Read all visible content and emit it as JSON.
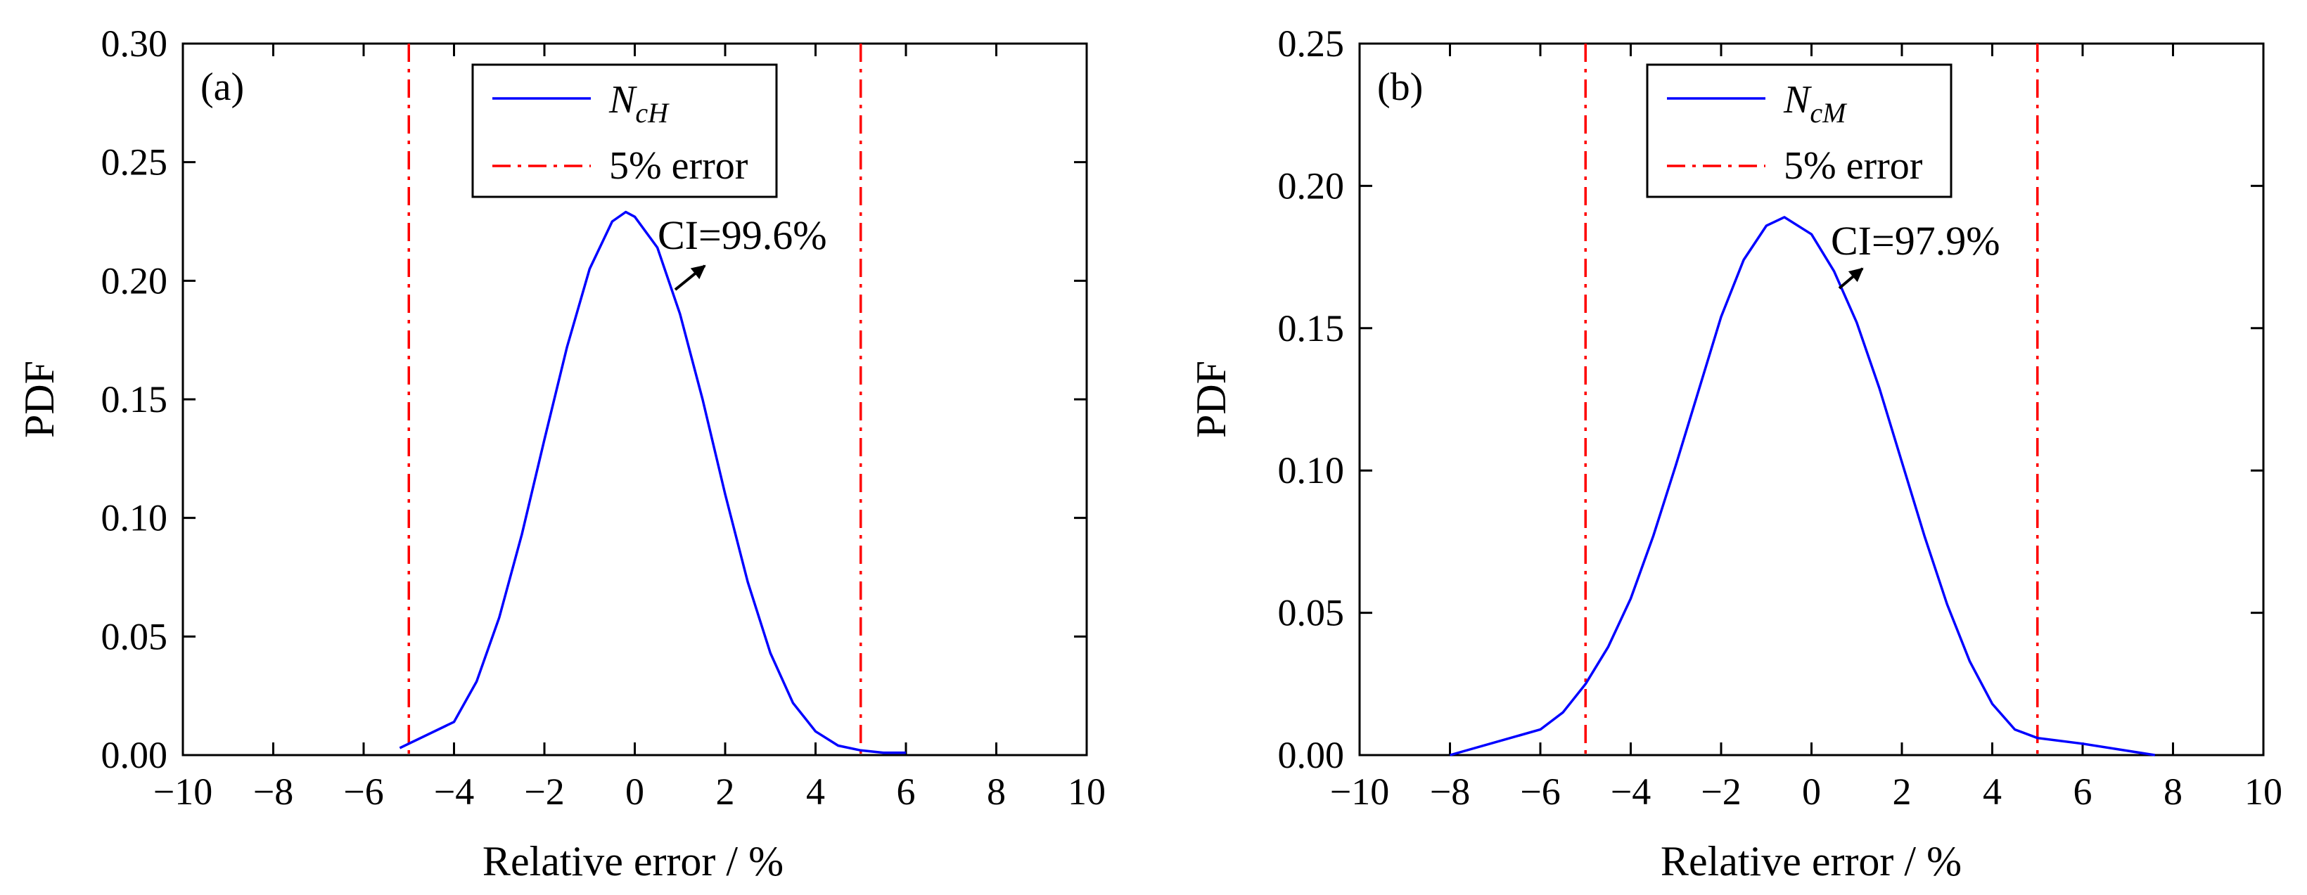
{
  "chart_data": [
    {
      "type": "line",
      "panel_label": "(a)",
      "xlabel": "Relative error / %",
      "ylabel": "PDF",
      "xlim": [
        -10,
        10
      ],
      "ylim": [
        0,
        0.3
      ],
      "xticks": [
        -10,
        -8,
        -6,
        -4,
        -2,
        0,
        2,
        4,
        6,
        8,
        10
      ],
      "xtick_labels": [
        "−10",
        "−8",
        "−6",
        "−4",
        "−2",
        "0",
        "2",
        "4",
        "6",
        "8",
        "10"
      ],
      "yticks": [
        0,
        0.05,
        0.1,
        0.15,
        0.2,
        0.25,
        0.3
      ],
      "ytick_labels": [
        "0.00",
        "0.05",
        "0.10",
        "0.15",
        "0.20",
        "0.25",
        "0.30"
      ],
      "series": [
        {
          "name": "NcH",
          "legend_main": "N",
          "legend_sub": "cH",
          "color": "#0000ff",
          "x": [
            -5.2,
            -4.0,
            -3.5,
            -3.0,
            -2.5,
            -2.0,
            -1.5,
            -1.0,
            -0.5,
            -0.2,
            0.0,
            0.5,
            1.0,
            1.5,
            2.0,
            2.5,
            3.0,
            3.5,
            4.0,
            4.5,
            5.0,
            5.5,
            6.0
          ],
          "y": [
            0.003,
            0.014,
            0.031,
            0.058,
            0.093,
            0.133,
            0.172,
            0.205,
            0.225,
            0.229,
            0.227,
            0.214,
            0.186,
            0.15,
            0.11,
            0.073,
            0.043,
            0.022,
            0.01,
            0.004,
            0.002,
            0.001,
            0.001
          ]
        }
      ],
      "reference_lines": {
        "legend_label": "5% error",
        "color": "#ff0000",
        "x_values": [
          -5,
          5
        ]
      },
      "annotation": {
        "text": "CI=99.6%",
        "x": 0.8,
        "y": 0.2
      }
    },
    {
      "type": "line",
      "panel_label": "(b)",
      "xlabel": "Relative error / %",
      "ylabel": "PDF",
      "xlim": [
        -10,
        10
      ],
      "ylim": [
        0,
        0.25
      ],
      "xticks": [
        -10,
        -8,
        -6,
        -4,
        -2,
        0,
        2,
        4,
        6,
        8,
        10
      ],
      "xtick_labels": [
        "−10",
        "−8",
        "−6",
        "−4",
        "−2",
        "0",
        "2",
        "4",
        "6",
        "8",
        "10"
      ],
      "yticks": [
        0,
        0.05,
        0.1,
        0.15,
        0.2,
        0.25
      ],
      "ytick_labels": [
        "0.00",
        "0.05",
        "0.10",
        "0.15",
        "0.20",
        "0.25"
      ],
      "series": [
        {
          "name": "NcM",
          "legend_main": "N",
          "legend_sub": "cM",
          "color": "#0000ff",
          "x": [
            -8.0,
            -6.0,
            -5.5,
            -5.0,
            -4.5,
            -4.0,
            -3.5,
            -3.0,
            -2.5,
            -2.0,
            -1.5,
            -1.0,
            -0.6,
            0.0,
            0.5,
            1.0,
            1.5,
            2.0,
            2.5,
            3.0,
            3.5,
            4.0,
            4.5,
            5.0,
            6.0,
            7.6
          ],
          "y": [
            0.0,
            0.009,
            0.015,
            0.025,
            0.038,
            0.055,
            0.077,
            0.102,
            0.128,
            0.154,
            0.174,
            0.186,
            0.189,
            0.183,
            0.17,
            0.152,
            0.129,
            0.103,
            0.077,
            0.053,
            0.033,
            0.018,
            0.009,
            0.006,
            0.004,
            0.0
          ]
        }
      ],
      "reference_lines": {
        "legend_label": "5% error",
        "color": "#ff0000",
        "x_values": [
          -5,
          5
        ]
      },
      "annotation": {
        "text": "CI=97.9%",
        "x": 0.9,
        "y": 0.17
      }
    }
  ]
}
